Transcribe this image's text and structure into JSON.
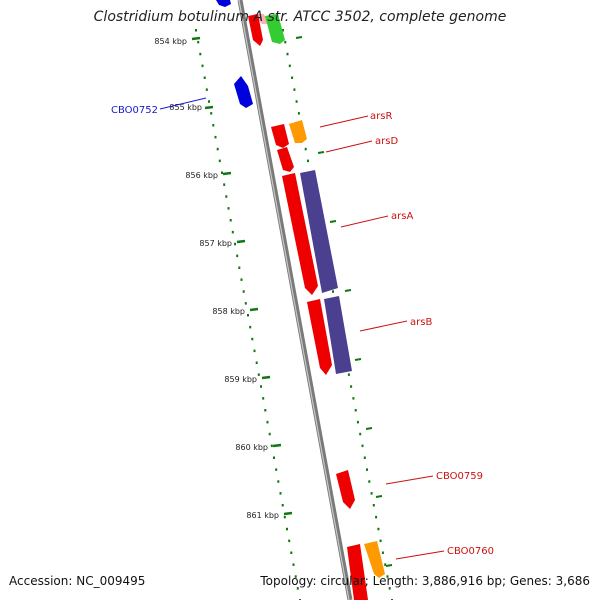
{
  "title": "Clostridium botulinum A str. ATCC 3502, complete genome",
  "footer": {
    "accession": "Accession: NC_009495",
    "topology": "Topology: circular; Length: 3,886,916 bp; Genes: 3,686"
  },
  "ticks": [
    "854 kbp",
    "855 kbp",
    "856 kbp",
    "857 kbp",
    "858 kbp",
    "859 kbp",
    "860 kbp",
    "861 kbp"
  ],
  "gene_labels": [
    {
      "name": "CBO0752",
      "color": "#1a1acc"
    },
    {
      "name": "arsR",
      "color": "#cc1111"
    },
    {
      "name": "arsD",
      "color": "#cc1111"
    },
    {
      "name": "arsA",
      "color": "#cc1111"
    },
    {
      "name": "arsB",
      "color": "#cc1111"
    },
    {
      "name": "CBO0759",
      "color": "#cc1111"
    },
    {
      "name": "CBO0760",
      "color": "#cc1111"
    }
  ],
  "colors": {
    "backbone": "#808080",
    "ticks": "#117711",
    "gene_red": "#ee0000",
    "gene_orange": "#ff9900",
    "gene_blue": "#0000dd",
    "gene_green": "#33cc33",
    "gene_purple": "#4b3f8f",
    "gene_pink": "#ffb0b0"
  }
}
